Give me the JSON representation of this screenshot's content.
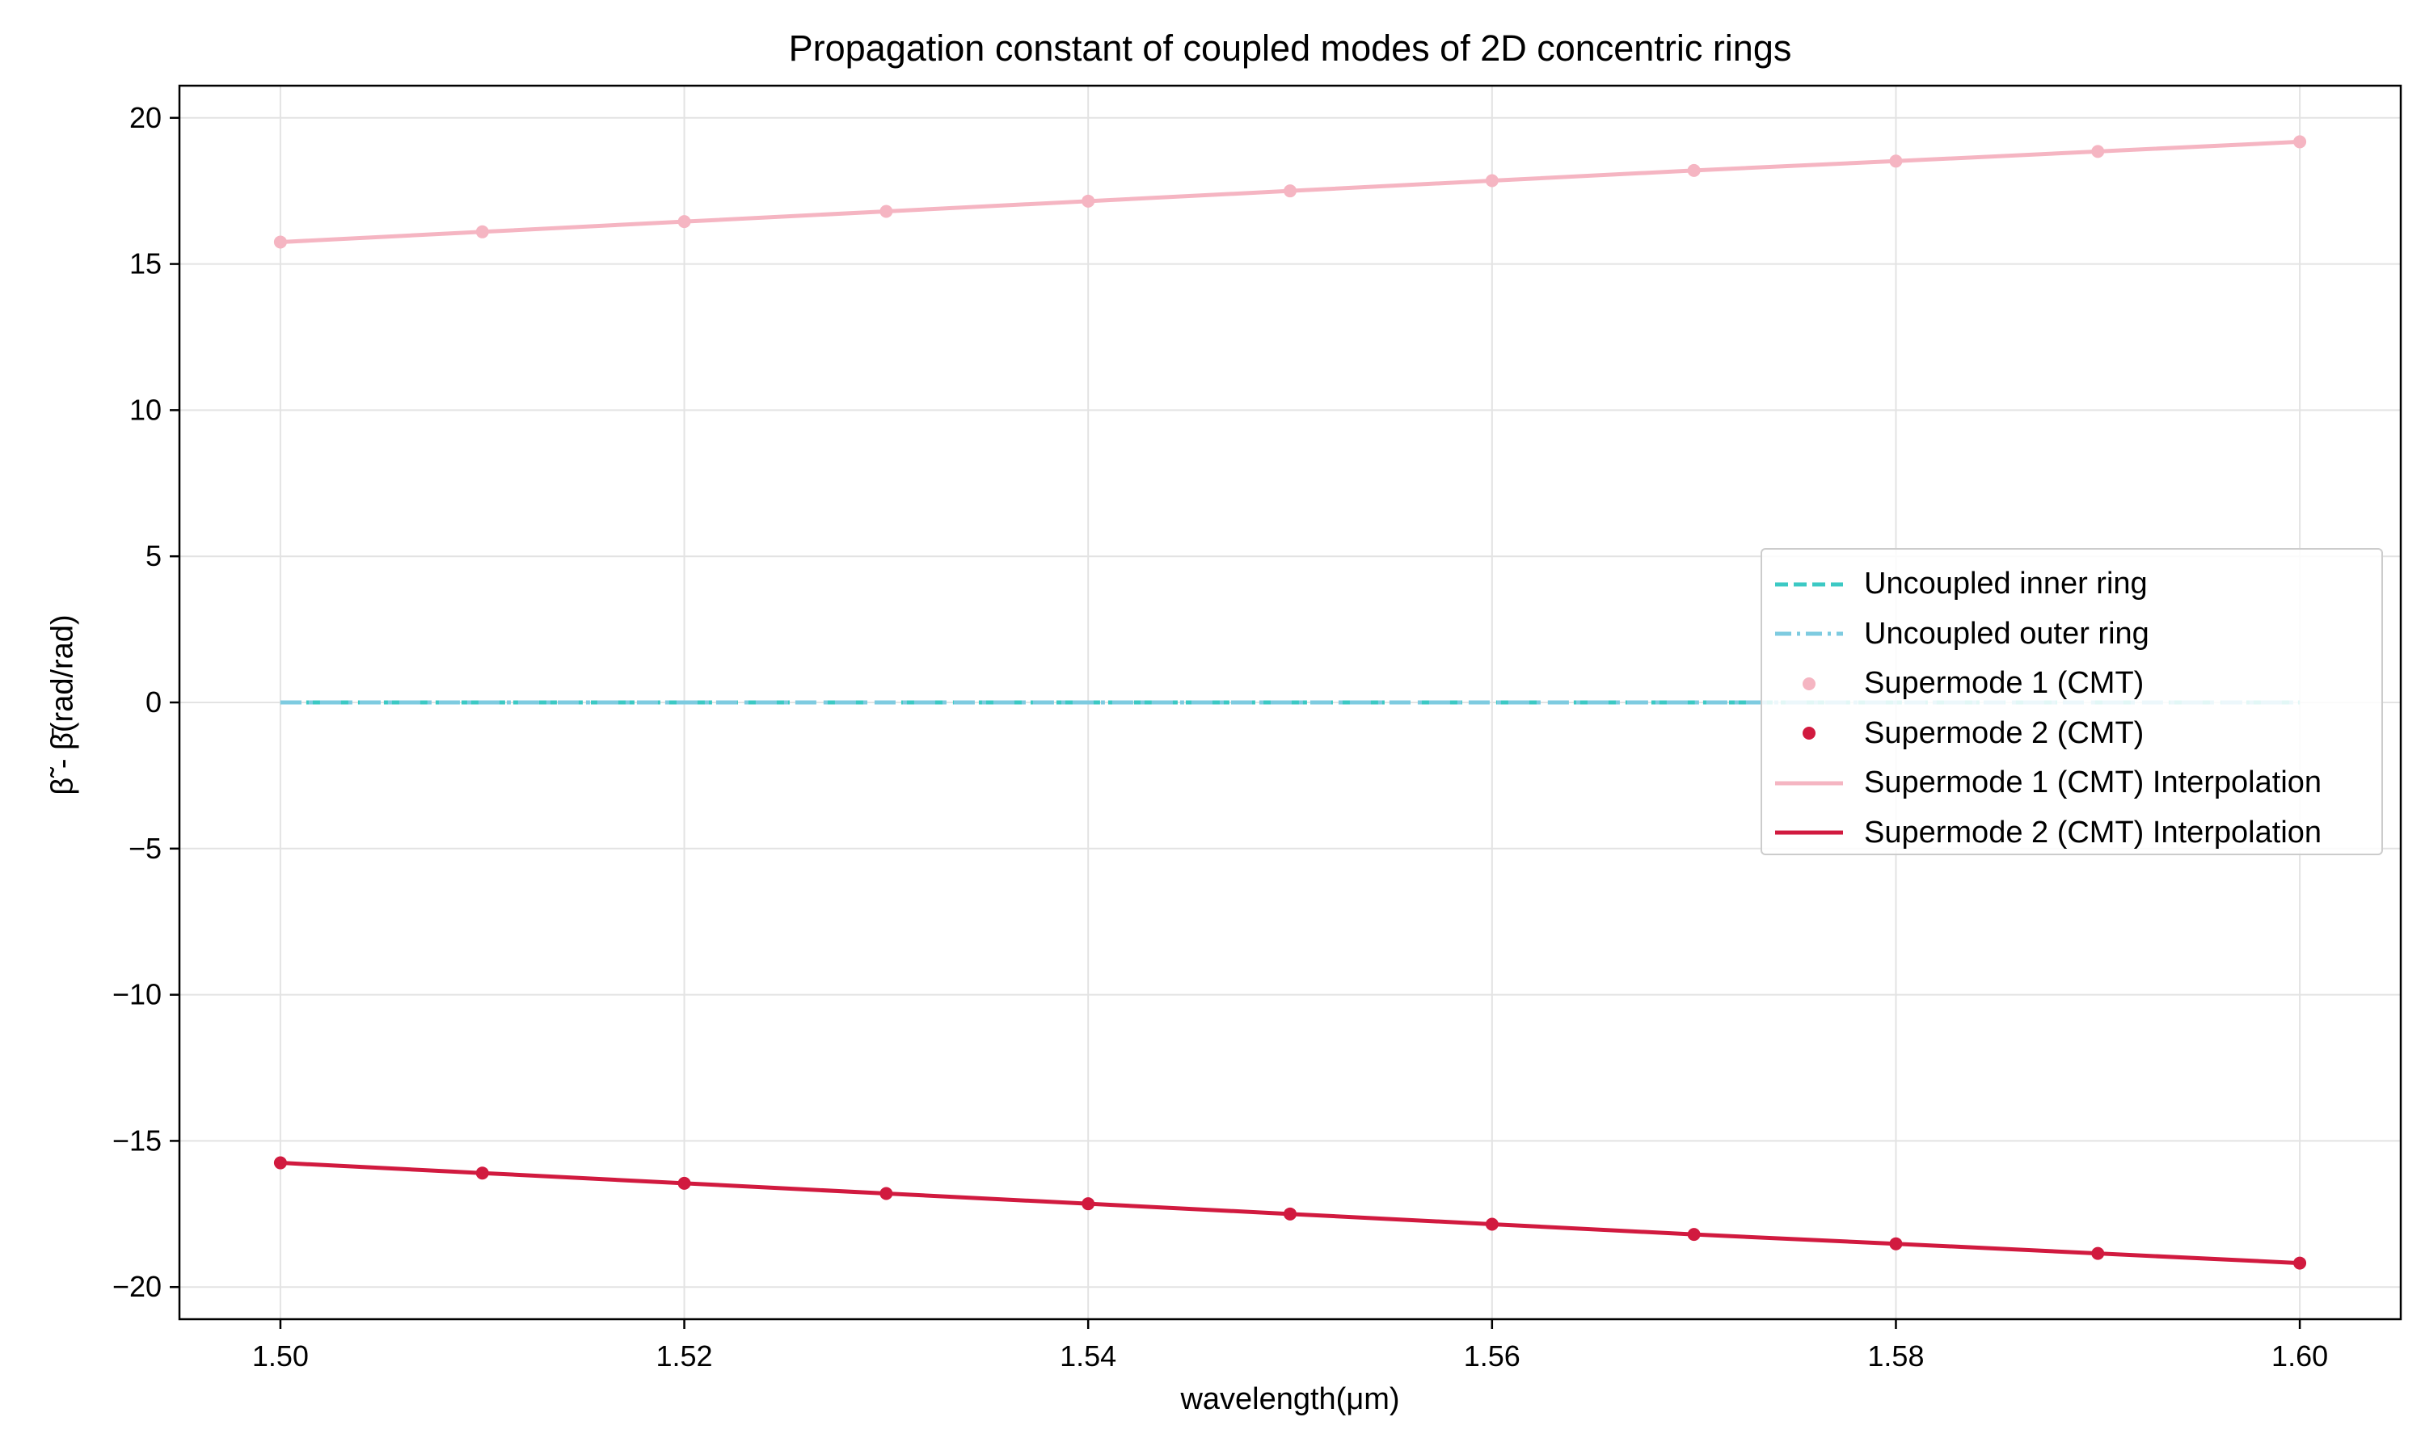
{
  "chart_data": {
    "type": "line",
    "title": "Propagation constant of coupled modes of 2D concentric rings",
    "xlabel": "wavelength(μm)",
    "ylabel": "β̃ - β̄(rad/rad)",
    "xlim": [
      1.495,
      1.605
    ],
    "ylim": [
      -21.1,
      21.1
    ],
    "xticks": [
      1.5,
      1.52,
      1.54,
      1.56,
      1.58,
      1.6
    ],
    "xtick_labels": [
      "1.50",
      "1.52",
      "1.54",
      "1.56",
      "1.58",
      "1.60"
    ],
    "yticks": [
      -20,
      -15,
      -10,
      -5,
      0,
      5,
      10,
      15,
      20
    ],
    "ytick_labels": [
      "−20",
      "−15",
      "−10",
      "−5",
      "0",
      "5",
      "10",
      "15",
      "20"
    ],
    "grid": true,
    "legend_position": "center-right",
    "x": [
      1.5,
      1.51,
      1.52,
      1.53,
      1.54,
      1.55,
      1.56,
      1.57,
      1.58,
      1.59,
      1.6
    ],
    "series": [
      {
        "name": "Uncoupled inner ring",
        "style": "dashed",
        "marker": "none",
        "color": "#3cc9c4",
        "values": [
          0,
          0,
          0,
          0,
          0,
          0,
          0,
          0,
          0,
          0,
          0
        ]
      },
      {
        "name": "Uncoupled outer ring",
        "style": "dashdot",
        "marker": "none",
        "color": "#7ecbe0",
        "values": [
          0,
          0,
          0,
          0,
          0,
          0,
          0,
          0,
          0,
          0,
          0
        ]
      },
      {
        "name": "Supermode 1 (CMT)",
        "style": "none",
        "marker": "dot",
        "color": "#f5b5c2",
        "values": [
          15.75,
          16.1,
          16.45,
          16.8,
          17.15,
          17.5,
          17.85,
          18.2,
          18.52,
          18.85,
          19.18
        ]
      },
      {
        "name": "Supermode 2 (CMT)",
        "style": "none",
        "marker": "dot",
        "color": "#d11a3f",
        "values": [
          -15.75,
          -16.1,
          -16.45,
          -16.8,
          -17.15,
          -17.5,
          -17.85,
          -18.2,
          -18.52,
          -18.85,
          -19.18
        ]
      },
      {
        "name": "Supermode 1 (CMT) Interpolation",
        "style": "solid",
        "marker": "none",
        "color": "#f5b5c2",
        "values": [
          15.75,
          16.1,
          16.45,
          16.8,
          17.15,
          17.5,
          17.85,
          18.2,
          18.52,
          18.85,
          19.18
        ]
      },
      {
        "name": "Supermode 2 (CMT) Interpolation",
        "style": "solid",
        "marker": "none",
        "color": "#d11a3f",
        "values": [
          -15.75,
          -16.1,
          -16.45,
          -16.8,
          -17.15,
          -17.5,
          -17.85,
          -18.2,
          -18.52,
          -18.85,
          -19.18
        ]
      }
    ]
  }
}
